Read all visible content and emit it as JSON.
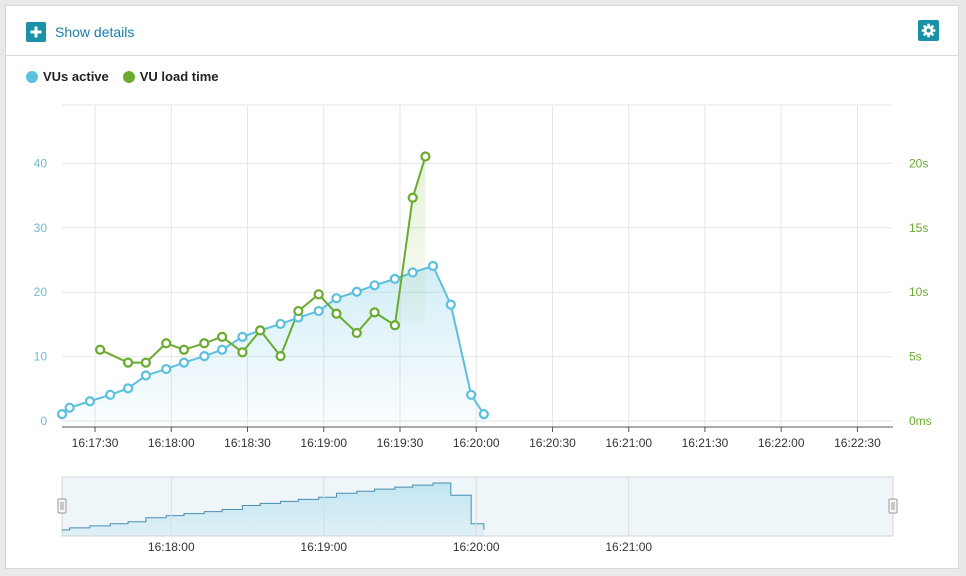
{
  "header": {
    "show_details_label": "Show details"
  },
  "icons": {
    "expand": "plus-icon",
    "settings": "gear-icon"
  },
  "colors": {
    "vus_active": "#5bc0de",
    "vu_load_time": "#6aab2e",
    "accent": "#1a8fa8",
    "left_axis_text": "#6fb9d0",
    "right_axis_text": "#6aab2e"
  },
  "chart_data": {
    "type": "line",
    "legend": [
      "VUs active",
      "VU load time"
    ],
    "legend_position": "top-left",
    "grid": true,
    "y_left": {
      "ticks": [
        0,
        10,
        20,
        30,
        40
      ],
      "tick_labels": [
        "0",
        "10",
        "20",
        "30",
        "40"
      ],
      "range": [
        0,
        50
      ]
    },
    "y_right": {
      "ticks_seconds": [
        0,
        5,
        10,
        15,
        20
      ],
      "tick_labels": [
        "0ms",
        "5s",
        "10s",
        "15s",
        "20s"
      ],
      "range": [
        0,
        25
      ]
    },
    "x_ticks": [
      "16:17:30",
      "16:18:00",
      "16:18:30",
      "16:19:00",
      "16:19:30",
      "16:20:00",
      "16:20:30",
      "16:21:00",
      "16:21:30",
      "16:22:00",
      "16:22:30"
    ],
    "x_range": [
      "16:17:17",
      "16:22:44"
    ],
    "series": [
      {
        "name": "VUs active",
        "axis": "left",
        "area": true,
        "points": [
          [
            "16:17:17",
            2
          ],
          [
            "16:17:20",
            3
          ],
          [
            "16:17:28",
            4
          ],
          [
            "16:17:36",
            5
          ],
          [
            "16:17:43",
            6
          ],
          [
            "16:17:50",
            8
          ],
          [
            "16:17:58",
            9
          ],
          [
            "16:18:05",
            10
          ],
          [
            "16:18:13",
            11
          ],
          [
            "16:18:20",
            12
          ],
          [
            "16:18:28",
            14
          ],
          [
            "16:18:35",
            15
          ],
          [
            "16:18:43",
            16
          ],
          [
            "16:18:50",
            17
          ],
          [
            "16:18:58",
            18
          ],
          [
            "16:19:05",
            20
          ],
          [
            "16:19:13",
            21
          ],
          [
            "16:19:20",
            22
          ],
          [
            "16:19:28",
            23
          ],
          [
            "16:19:35",
            24
          ],
          [
            "16:19:43",
            25
          ],
          [
            "16:19:50",
            19
          ],
          [
            "16:19:58",
            5
          ],
          [
            "16:20:03",
            2
          ]
        ]
      },
      {
        "name": "VU load time",
        "axis": "right",
        "area_last_segment": true,
        "points": [
          [
            "16:17:32",
            6
          ],
          [
            "16:17:43",
            5
          ],
          [
            "16:17:50",
            5
          ],
          [
            "16:17:58",
            6.5
          ],
          [
            "16:18:05",
            6
          ],
          [
            "16:18:13",
            6.5
          ],
          [
            "16:18:20",
            7
          ],
          [
            "16:18:28",
            5.8
          ],
          [
            "16:18:35",
            7.5
          ],
          [
            "16:18:43",
            5.5
          ],
          [
            "16:18:50",
            9
          ],
          [
            "16:18:58",
            10.3
          ],
          [
            "16:19:05",
            8.8
          ],
          [
            "16:19:13",
            7.3
          ],
          [
            "16:19:20",
            8.9
          ],
          [
            "16:19:28",
            7.9
          ],
          [
            "16:19:35",
            17.8
          ],
          [
            "16:19:40",
            21
          ]
        ]
      }
    ],
    "navigator": {
      "x_ticks": [
        "16:18:00",
        "16:19:00",
        "16:20:00",
        "16:21:00"
      ]
    }
  }
}
